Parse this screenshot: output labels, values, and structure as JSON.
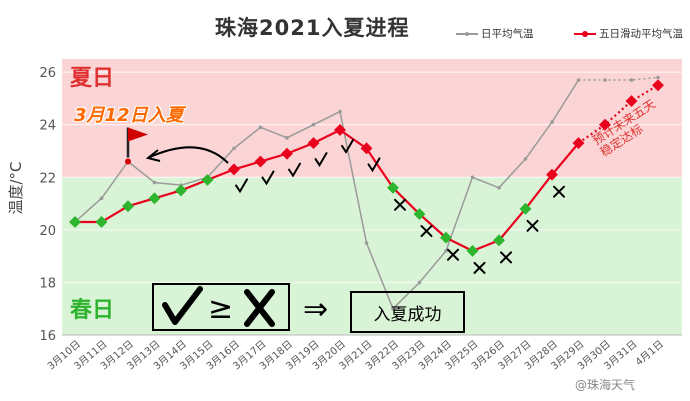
{
  "title": "珠海2021入夏进程",
  "legend": {
    "daily": "日平均气温",
    "rolling": "五日滑动平均气温"
  },
  "labels": {
    "summer": "夏日",
    "spring": "春日",
    "summer_start": "3月12日入夏",
    "forecast_note": "预计未来五天\n稳定达标",
    "result": "入夏成功",
    "ge": "≥",
    "implies": "⇒"
  },
  "watermark": "@珠海天气",
  "colors": {
    "summer_bg": "#fbd5d5",
    "spring_bg": "#d9f3d6",
    "daily_line": "#9a9a9a",
    "rolling_line": "#e8001c",
    "passed_marker": "#2db52d",
    "failed_marker": "#e8001c",
    "flag": "#d00000"
  },
  "chart_data": {
    "type": "line",
    "title": "珠海2021入夏进程",
    "ylabel": "温度/°C",
    "xlabel": "",
    "ylim": [
      16,
      26.5
    ],
    "yticks": [
      16,
      18,
      20,
      22,
      24,
      26
    ],
    "summer_threshold": 22,
    "categories": [
      "3月10日",
      "3月11日",
      "3月12日",
      "3月13日",
      "3月14日",
      "3月15日",
      "3月16日",
      "3月17日",
      "3月18日",
      "3月19日",
      "3月20日",
      "3月21日",
      "3月22日",
      "3月23日",
      "3月24日",
      "3月25日",
      "3月26日",
      "3月27日",
      "3月28日",
      "3月29日",
      "3月30日",
      "3月31日",
      "4月1日"
    ],
    "series": [
      {
        "name": "日平均气温",
        "values": [
          20.3,
          21.2,
          22.6,
          21.8,
          21.7,
          22.0,
          23.1,
          23.9,
          23.5,
          24.0,
          24.5,
          19.5,
          17.0,
          18.0,
          19.2,
          22.0,
          21.6,
          22.7,
          24.1,
          25.7,
          25.7,
          25.7,
          25.8
        ],
        "forecast_from": 19
      },
      {
        "name": "五日滑动平均气温",
        "values": [
          20.3,
          20.3,
          20.9,
          21.2,
          21.5,
          21.9,
          22.3,
          22.6,
          22.9,
          23.3,
          23.8,
          23.1,
          21.6,
          20.6,
          19.7,
          19.2,
          19.6,
          20.8,
          22.1,
          23.3,
          24.0,
          24.9,
          25.5
        ],
        "forecast_from": 19
      }
    ],
    "summer_start_index": 2,
    "marks": [
      "",
      "",
      "",
      "",
      "",
      "",
      "check",
      "check",
      "check",
      "check",
      "check",
      "check",
      "cross",
      "cross",
      "cross",
      "cross",
      "cross",
      "cross",
      "cross",
      "",
      "",
      "",
      ""
    ]
  }
}
